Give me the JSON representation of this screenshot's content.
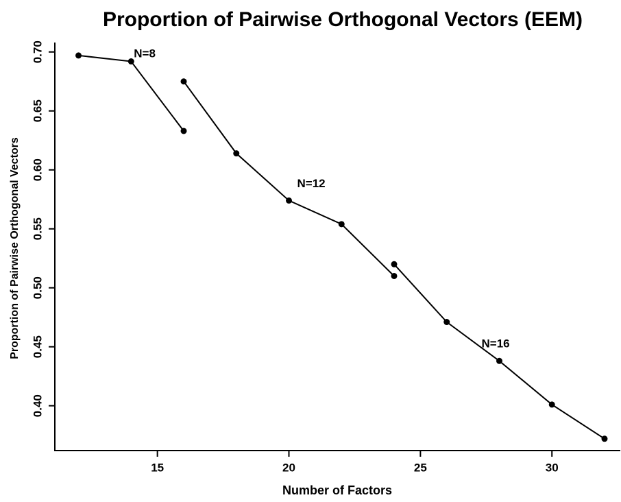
{
  "chart_data": {
    "type": "line",
    "title": "Proportion of Pairwise Orthogonal Vectors (EEM)",
    "x_label": "Number of Factors",
    "y_label": "Proportion of Pairwise Orthogonal Vectors",
    "series": [
      {
        "color": "#000000",
        "x": [
          12,
          14,
          16
        ],
        "values": [
          0.697,
          0.692,
          0.633
        ]
      },
      {
        "color": "#000000",
        "x": [
          16,
          18,
          20,
          22,
          24
        ],
        "values": [
          0.675,
          0.614,
          0.574,
          0.554,
          0.51
        ]
      },
      {
        "color": "#000000",
        "x": [
          24,
          26,
          28,
          30,
          32
        ],
        "values": [
          0.52,
          0.471,
          0.438,
          0.401,
          0.372
        ]
      }
    ],
    "annotations": [
      "N=8",
      "N=12",
      "N=16"
    ],
    "xlim": [
      11.1,
      32.6
    ],
    "xticks": [
      15,
      20,
      25,
      30
    ],
    "ylim": [
      0.362,
      0.708
    ],
    "yticks": [
      {
        "value": 0.4,
        "label": "0.40"
      },
      0.45,
      {
        "value": 0.5,
        "label": "0.50"
      },
      0.55,
      {
        "value": 0.6,
        "label": "0.60"
      },
      0.65,
      {
        "value": 0.7,
        "label": "0.70"
      }
    ],
    "grid": false
  }
}
